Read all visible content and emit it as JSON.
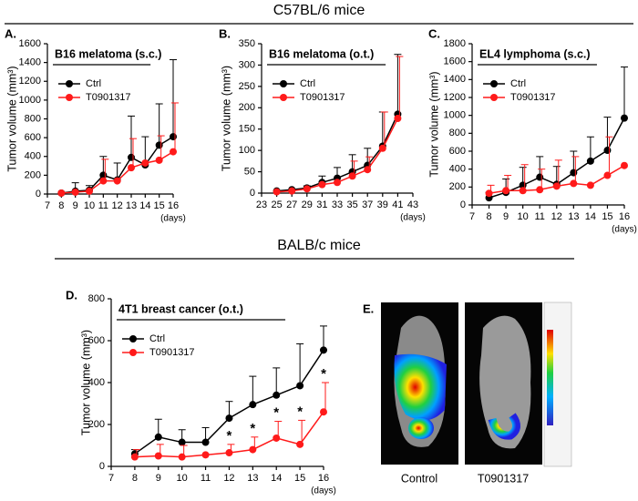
{
  "section_titles": [
    "C57BL/6 mice",
    "BALB/c mice"
  ],
  "chart_data": [
    {
      "type": "line",
      "panel": "A.",
      "subtitle": "B16 melatoma (s.c.)",
      "ylabel": "Tumor volume (mm³)",
      "xunit": "(days)",
      "xlim": [
        7,
        16
      ],
      "xticks": [
        7,
        8,
        9,
        10,
        11,
        12,
        13,
        14,
        15,
        16
      ],
      "ylim": [
        0,
        1600
      ],
      "yticks": [
        0,
        200,
        400,
        600,
        800,
        1000,
        1200,
        1400,
        1600
      ],
      "x": [
        8,
        9,
        10,
        11,
        12,
        13,
        14,
        15,
        16
      ],
      "series": [
        {
          "name": "Ctrl",
          "color": "#000000",
          "values": [
            10,
            30,
            40,
            200,
            150,
            390,
            310,
            520,
            610
          ],
          "errors": [
            null,
            90,
            50,
            200,
            180,
            440,
            300,
            440,
            820
          ]
        },
        {
          "name": "T0901317",
          "color": "#ff1a1a",
          "values": [
            10,
            20,
            30,
            140,
            140,
            280,
            330,
            360,
            450
          ],
          "errors": [
            null,
            null,
            null,
            230,
            null,
            310,
            null,
            260,
            520
          ]
        }
      ]
    },
    {
      "type": "line",
      "panel": "B.",
      "subtitle": "B16 melatoma (o.t.)",
      "ylabel": "Tumor volume (mm³)",
      "xunit": "(days)",
      "xlim": [
        23,
        43
      ],
      "xticks": [
        23,
        25,
        27,
        29,
        31,
        33,
        35,
        37,
        39,
        41,
        43
      ],
      "ylim": [
        0,
        350
      ],
      "yticks": [
        0,
        50,
        100,
        150,
        200,
        250,
        300,
        350
      ],
      "x": [
        25,
        27,
        29,
        31,
        33,
        35,
        37,
        39,
        41
      ],
      "series": [
        {
          "name": "Ctrl",
          "color": "#000000",
          "values": [
            5,
            8,
            12,
            25,
            35,
            50,
            65,
            110,
            185
          ],
          "errors": [
            null,
            null,
            5,
            15,
            25,
            40,
            40,
            80,
            140
          ]
        },
        {
          "name": "T0901317",
          "color": "#ff1a1a",
          "values": [
            3,
            5,
            10,
            20,
            25,
            40,
            55,
            105,
            175
          ],
          "errors": [
            null,
            null,
            null,
            null,
            null,
            35,
            30,
            85,
            145
          ]
        }
      ]
    },
    {
      "type": "line",
      "panel": "C.",
      "subtitle": "EL4 lymphoma (s.c.)",
      "ylabel": "Tumor volume (mm³)",
      "xunit": "(days)",
      "xlim": [
        7,
        16
      ],
      "xticks": [
        7,
        8,
        9,
        10,
        11,
        12,
        13,
        14,
        15,
        16
      ],
      "ylim": [
        0,
        1800
      ],
      "yticks": [
        0,
        200,
        400,
        600,
        800,
        1000,
        1200,
        1400,
        1600,
        1800
      ],
      "x": [
        8,
        9,
        10,
        11,
        12,
        13,
        14,
        15,
        16
      ],
      "series": [
        {
          "name": "Ctrl",
          "color": "#000000",
          "values": [
            80,
            140,
            220,
            310,
            230,
            360,
            490,
            610,
            970
          ],
          "errors": [
            60,
            150,
            200,
            230,
            200,
            240,
            270,
            370,
            570
          ]
        },
        {
          "name": "T0901317",
          "color": "#ff1a1a",
          "values": [
            130,
            160,
            160,
            170,
            210,
            240,
            220,
            330,
            440
          ],
          "errors": [
            90,
            170,
            290,
            230,
            290,
            300,
            null,
            430,
            null
          ]
        }
      ]
    },
    {
      "type": "line",
      "panel": "D.",
      "subtitle": "4T1 breast cancer (o.t.)",
      "ylabel": "Tumor volume (mm³)",
      "xunit": "(days)",
      "xlim": [
        7,
        16
      ],
      "xticks": [
        7,
        8,
        9,
        10,
        11,
        12,
        13,
        14,
        15,
        16
      ],
      "ylim": [
        0,
        800
      ],
      "yticks": [
        0,
        200,
        400,
        600,
        800
      ],
      "x": [
        8,
        9,
        10,
        11,
        12,
        13,
        14,
        15,
        16
      ],
      "series": [
        {
          "name": "Ctrl",
          "color": "#000000",
          "values": [
            60,
            140,
            115,
            115,
            230,
            295,
            340,
            385,
            555
          ],
          "errors": [
            20,
            85,
            60,
            70,
            80,
            135,
            130,
            200,
            115
          ]
        },
        {
          "name": "T0901317",
          "color": "#ff1a1a",
          "values": [
            45,
            50,
            45,
            55,
            65,
            80,
            135,
            105,
            260
          ],
          "errors": [
            35,
            55,
            55,
            null,
            40,
            60,
            80,
            115,
            140
          ]
        }
      ],
      "annotations": [
        {
          "x": 12,
          "label": "*"
        },
        {
          "x": 13,
          "label": "*"
        },
        {
          "x": 14,
          "label": "*"
        },
        {
          "x": 15,
          "label": "*"
        },
        {
          "x": 16,
          "label": "*"
        }
      ]
    }
  ],
  "image_panel": {
    "panel": "E.",
    "labels": [
      "Control",
      "T0901317"
    ]
  }
}
